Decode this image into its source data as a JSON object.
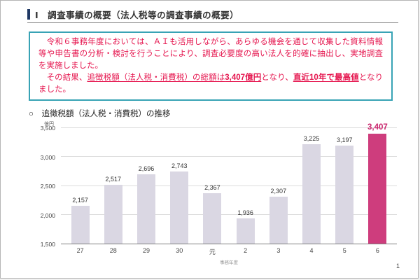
{
  "page": {
    "number": "1"
  },
  "header": {
    "title": "Ⅰ　調査事績の概要（法人税等の調査事績の概要）"
  },
  "highlight_box": {
    "p1": "　令和６事務年度においては、ＡＩも活用しながら、あらゆる機会を通じて収集した資料情報等や申告書の分析・検討を行うことにより、調査必要度の高い法人を的確に抽出し、実地調査を実施しました。",
    "p2_seg1": "　その結果、",
    "p2_seg2": "追徴税額（法人税・消費税）の総額は",
    "p2_seg3": "3,407億円",
    "p2_seg4": "となり、",
    "p2_seg5": "直近10年で最高値",
    "p2_seg6": "となりました。"
  },
  "chart_heading": "○　追徴税額（法人税・消費税）の推移",
  "chart_data": {
    "type": "bar",
    "title": "追徴税額（法人税・消費税）の推移",
    "unit_label": "億円",
    "xlabel": "事務年度",
    "categories": [
      "27",
      "28",
      "29",
      "30",
      "元",
      "2",
      "3",
      "4",
      "5",
      "6"
    ],
    "values": [
      2157,
      2517,
      2696,
      2743,
      2367,
      1936,
      2307,
      3225,
      3197,
      3407
    ],
    "value_labels": [
      "2,157",
      "2,517",
      "2,696",
      "2,743",
      "2,367",
      "1,936",
      "2,307",
      "3,225",
      "3,197",
      "3,407"
    ],
    "ylim": [
      1500,
      3500
    ],
    "yticks": [
      "1,500",
      "2,000",
      "2,500",
      "3,000",
      "3,500"
    ],
    "grid": true,
    "legend": false,
    "bar_color": "#dad7e3",
    "highlight_color": "#ce3d7d",
    "highlight_label_color": "#c9256d",
    "highlight_index": 9
  },
  "colors": {
    "accent_red": "#e5154e",
    "box_border": "#38a3b5",
    "header_bar": "#1f3864"
  }
}
